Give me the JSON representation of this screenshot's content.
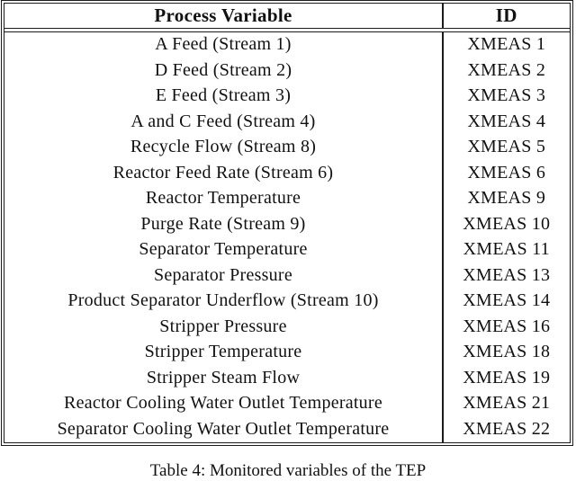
{
  "table": {
    "columns": [
      "Process Variable",
      "ID"
    ],
    "rows": [
      {
        "variable": "A Feed (Stream 1)",
        "id": "XMEAS 1"
      },
      {
        "variable": "D Feed (Stream 2)",
        "id": "XMEAS 2"
      },
      {
        "variable": "E Feed (Stream 3)",
        "id": "XMEAS 3"
      },
      {
        "variable": "A and C Feed (Stream 4)",
        "id": "XMEAS 4"
      },
      {
        "variable": "Recycle Flow (Stream 8)",
        "id": "XMEAS 5"
      },
      {
        "variable": "Reactor Feed Rate (Stream 6)",
        "id": "XMEAS 6"
      },
      {
        "variable": "Reactor Temperature",
        "id": "XMEAS 9"
      },
      {
        "variable": "Purge Rate (Stream 9)",
        "id": "XMEAS 10"
      },
      {
        "variable": "Separator Temperature",
        "id": "XMEAS 11"
      },
      {
        "variable": "Separator Pressure",
        "id": "XMEAS 13"
      },
      {
        "variable": "Product Separator Underflow (Stream 10)",
        "id": "XMEAS 14"
      },
      {
        "variable": "Stripper Pressure",
        "id": "XMEAS 16"
      },
      {
        "variable": "Stripper Temperature",
        "id": "XMEAS 18"
      },
      {
        "variable": "Stripper Steam Flow",
        "id": "XMEAS 19"
      },
      {
        "variable": "Reactor Cooling Water Outlet Temperature",
        "id": "XMEAS 21"
      },
      {
        "variable": "Separator Cooling Water Outlet Temperature",
        "id": "XMEAS 22"
      }
    ]
  },
  "caption": "Table 4: Monitored variables of the TEP",
  "colors": {
    "rule": "#1c1c1c",
    "text": "#111111",
    "background": "#ffffff"
  }
}
